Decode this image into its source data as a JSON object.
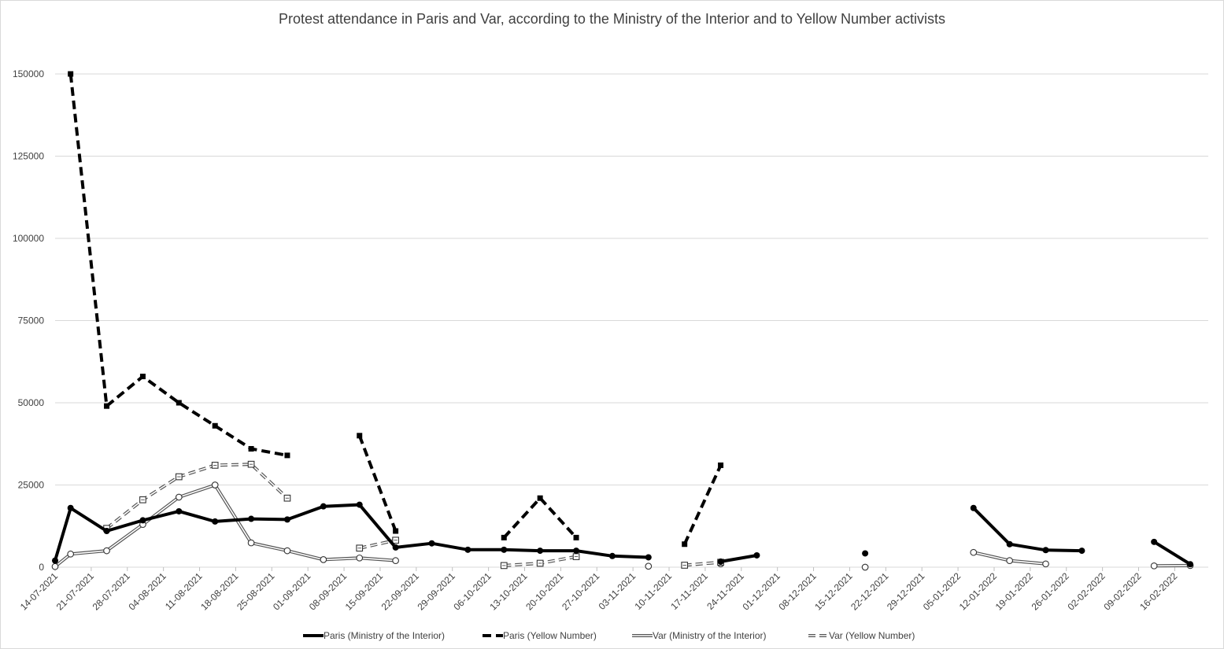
{
  "chart_data": {
    "type": "line",
    "title": "Protest attendance in Paris and Var, according to the Ministry of the Interior and to Yellow Number activists",
    "xlabel": "",
    "ylabel": "",
    "ylim": [
      0,
      150000
    ],
    "y_ticks": [
      "0",
      "25000",
      "50000",
      "75000",
      "100000",
      "125000",
      "150000"
    ],
    "x_tick_labels": [
      "14-07-2021",
      "21-07-2021",
      "28-07-2021",
      "04-08-2021",
      "11-08-2021",
      "18-08-2021",
      "25-08-2021",
      "01-09-2021",
      "08-09-2021",
      "15-09-2021",
      "22-09-2021",
      "29-09-2021",
      "06-10-2021",
      "13-10-2021",
      "20-10-2021",
      "27-10-2021",
      "03-11-2021",
      "10-11-2021",
      "17-11-2021",
      "24-11-2021",
      "01-12-2021",
      "08-12-2021",
      "15-12-2021",
      "22-12-2021",
      "29-12-2021",
      "05-01-2022",
      "12-01-2022",
      "19-01-2022",
      "26-01-2022",
      "02-02-2022",
      "09-02-2022",
      "16-02-2022"
    ],
    "legend_position": "bottom",
    "grid": true,
    "series": [
      {
        "name": "Paris (Ministry of the Interior)",
        "color": "#000000",
        "style": "solid-thick",
        "marker": "filled-circle",
        "points": [
          [
            "14-07-2021",
            2000
          ],
          [
            "17-07-2021",
            18000
          ],
          [
            "24-07-2021",
            11000
          ],
          [
            "31-07-2021",
            14250
          ],
          [
            "07-08-2021",
            17000
          ],
          [
            "14-08-2021",
            13900
          ],
          [
            "21-08-2021",
            14700
          ],
          [
            "28-08-2021",
            14500
          ],
          [
            "04-09-2021",
            18500
          ],
          [
            "11-09-2021",
            19000
          ],
          [
            "18-09-2021",
            6000
          ],
          [
            "25-09-2021",
            7250
          ],
          [
            "02-10-2021",
            5300
          ],
          [
            "09-10-2021",
            5300
          ],
          [
            "16-10-2021",
            5000
          ],
          [
            "23-10-2021",
            5000
          ],
          [
            "30-10-2021",
            3400
          ],
          [
            "06-11-2021",
            3000
          ],
          null,
          [
            "20-11-2021",
            1700
          ],
          [
            "27-11-2021",
            3600
          ],
          null,
          [
            "18-12-2021",
            4200
          ],
          null,
          [
            "08-01-2022",
            18000
          ],
          [
            "15-01-2022",
            7000
          ],
          [
            "22-01-2022",
            5200
          ],
          [
            "29-01-2022",
            5000
          ],
          null,
          [
            "12-02-2022",
            7700
          ],
          [
            "19-02-2022",
            900
          ]
        ]
      },
      {
        "name": "Paris (Yellow Number)",
        "color": "#000000",
        "style": "dashed-thick",
        "marker": "filled-square",
        "points": [
          [
            "17-07-2021",
            150000
          ],
          [
            "24-07-2021",
            49000
          ],
          [
            "31-07-2021",
            58000
          ],
          [
            "07-08-2021",
            50000
          ],
          [
            "14-08-2021",
            43000
          ],
          [
            "21-08-2021",
            36000
          ],
          [
            "28-08-2021",
            34000
          ],
          null,
          [
            "11-09-2021",
            40000
          ],
          [
            "18-09-2021",
            11000
          ],
          null,
          [
            "09-10-2021",
            9000
          ],
          [
            "16-10-2021",
            21000
          ],
          [
            "23-10-2021",
            9000
          ],
          null,
          [
            "13-11-2021",
            7000
          ],
          [
            "20-11-2021",
            31000
          ]
        ]
      },
      {
        "name": "Var (Ministry of the Interior)",
        "color": "#555555",
        "style": "double-thin",
        "marker": "open-circle",
        "points": [
          [
            "14-07-2021",
            200
          ],
          [
            "17-07-2021",
            4000
          ],
          [
            "24-07-2021",
            5000
          ],
          [
            "31-07-2021",
            13000
          ],
          [
            "07-08-2021",
            21300
          ],
          [
            "14-08-2021",
            25000
          ],
          [
            "21-08-2021",
            7400
          ],
          [
            "28-08-2021",
            5000
          ],
          [
            "04-09-2021",
            2300
          ],
          [
            "11-09-2021",
            2800
          ],
          [
            "18-09-2021",
            2000
          ],
          null,
          [
            "06-11-2021",
            300
          ],
          null,
          [
            "20-11-2021",
            1000
          ],
          null,
          [
            "18-12-2021",
            0
          ],
          null,
          [
            "08-01-2022",
            4500
          ],
          [
            "15-01-2022",
            2000
          ],
          [
            "22-01-2022",
            1000
          ],
          null,
          [
            "12-02-2022",
            400
          ],
          [
            "19-02-2022",
            500
          ]
        ]
      },
      {
        "name": "Var (Yellow Number)",
        "color": "#555555",
        "style": "double-dashed",
        "marker": "open-square",
        "points": [
          [
            "24-07-2021",
            11800
          ],
          [
            "31-07-2021",
            20500
          ],
          [
            "07-08-2021",
            27500
          ],
          [
            "14-08-2021",
            31000
          ],
          [
            "21-08-2021",
            31300
          ],
          [
            "28-08-2021",
            21000
          ],
          null,
          [
            "11-09-2021",
            5800
          ],
          [
            "18-09-2021",
            8200
          ],
          null,
          [
            "09-10-2021",
            500
          ],
          [
            "16-10-2021",
            1200
          ],
          [
            "23-10-2021",
            3200
          ],
          null,
          [
            "13-11-2021",
            600
          ],
          [
            "20-11-2021",
            1500
          ]
        ]
      }
    ]
  }
}
